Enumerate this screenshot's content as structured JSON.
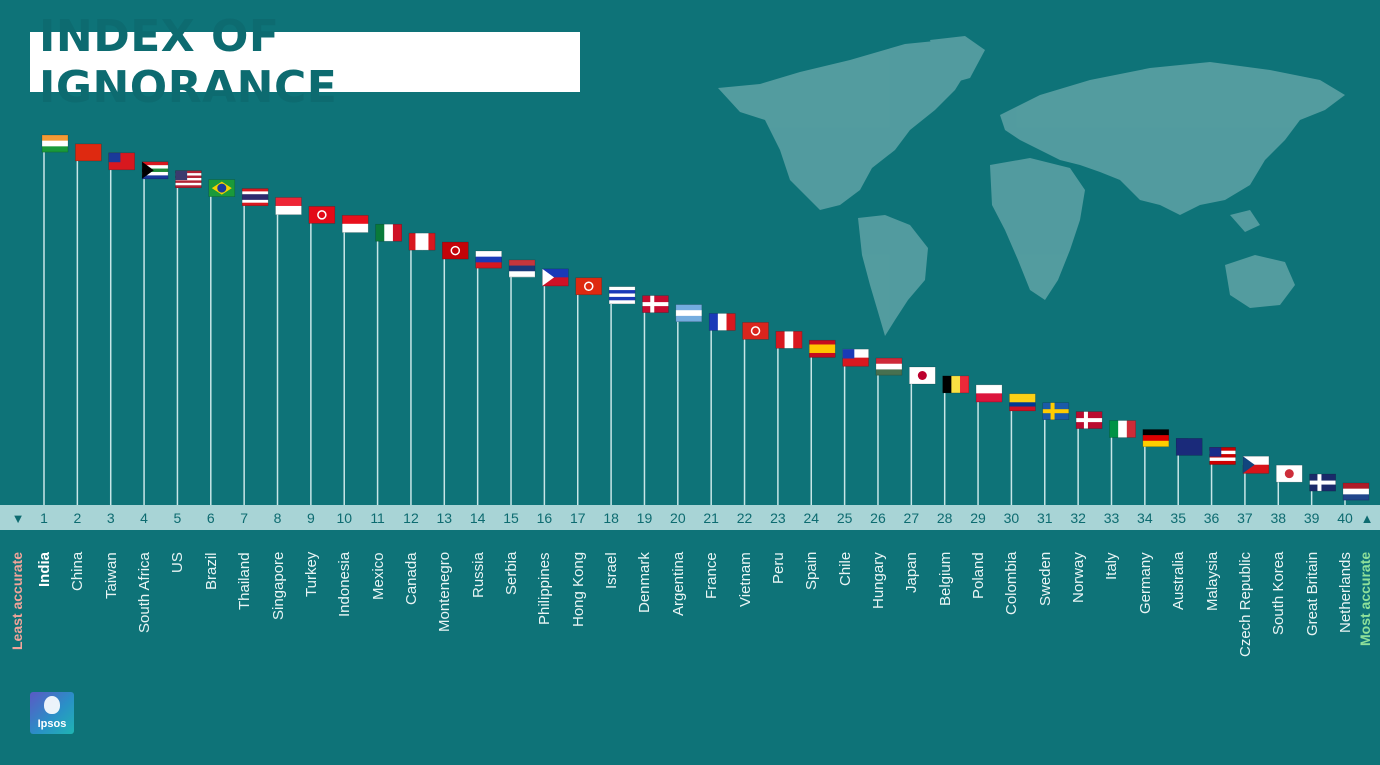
{
  "title": "INDEX OF IGNORANCE",
  "brand": "Ipsos",
  "colors": {
    "background": "#0e7378",
    "axis_band": "#a8d4d6",
    "least_accurate": "#f2a49a",
    "most_accurate": "#8ee09a",
    "map": "#5fa3a6"
  },
  "chart_data": {
    "type": "bar",
    "title": "INDEX OF IGNORANCE",
    "left_end_label": "Least accurate",
    "right_end_label": "Most accurate",
    "left_marker": "▼",
    "right_marker": "▲",
    "ranks": [
      "1",
      "2",
      "3",
      "4",
      "5",
      "6",
      "7",
      "8",
      "9",
      "10",
      "11",
      "12",
      "13",
      "14",
      "15",
      "16",
      "17",
      "18",
      "19",
      "20",
      "21",
      "22",
      "23",
      "24",
      "25",
      "26",
      "27",
      "28",
      "29",
      "30",
      "31",
      "32",
      "33",
      "34",
      "35",
      "36",
      "37",
      "38",
      "39",
      "40"
    ],
    "countries": [
      "India",
      "China",
      "Taiwan",
      "South Africa",
      "US",
      "Brazil",
      "Thailand",
      "Singapore",
      "Turkey",
      "Indonesia",
      "Mexico",
      "Canada",
      "Montenegro",
      "Russia",
      "Serbia",
      "Philippines",
      "Hong Kong",
      "Israel",
      "Denmark",
      "Argentina",
      "France",
      "Vietnam",
      "Peru",
      "Spain",
      "Chile",
      "Hungary",
      "Japan",
      "Belgium",
      "Poland",
      "Colombia",
      "Sweden",
      "Norway",
      "Italy",
      "Germany",
      "Australia",
      "Malaysia",
      "Czech Republic",
      "South Korea",
      "Great Britain",
      "Netherlands"
    ],
    "values": [
      40,
      39,
      38,
      37,
      36,
      35,
      34,
      33,
      32,
      31,
      30,
      29,
      28,
      27,
      26,
      25,
      24,
      23,
      22,
      21,
      20,
      19,
      18,
      17,
      16,
      15,
      14,
      13,
      12,
      11,
      10,
      9,
      8,
      7,
      6,
      5,
      4,
      3,
      2,
      1
    ],
    "flag_icons": [
      "india-flag-icon",
      "china-flag-icon",
      "taiwan-flag-icon",
      "south-africa-flag-icon",
      "us-flag-icon",
      "brazil-flag-icon",
      "thailand-flag-icon",
      "singapore-flag-icon",
      "turkey-flag-icon",
      "indonesia-flag-icon",
      "mexico-flag-icon",
      "canada-flag-icon",
      "montenegro-flag-icon",
      "russia-flag-icon",
      "serbia-flag-icon",
      "philippines-flag-icon",
      "hong-kong-flag-icon",
      "israel-flag-icon",
      "denmark-flag-icon",
      "argentina-flag-icon",
      "france-flag-icon",
      "vietnam-flag-icon",
      "peru-flag-icon",
      "spain-flag-icon",
      "chile-flag-icon",
      "hungary-flag-icon",
      "japan-flag-icon",
      "belgium-flag-icon",
      "poland-flag-icon",
      "colombia-flag-icon",
      "sweden-flag-icon",
      "norway-flag-icon",
      "italy-flag-icon",
      "germany-flag-icon",
      "australia-flag-icon",
      "malaysia-flag-icon",
      "czech-republic-flag-icon",
      "south-korea-flag-icon",
      "great-britain-flag-icon",
      "netherlands-flag-icon"
    ],
    "grid": false,
    "legend": "none"
  }
}
